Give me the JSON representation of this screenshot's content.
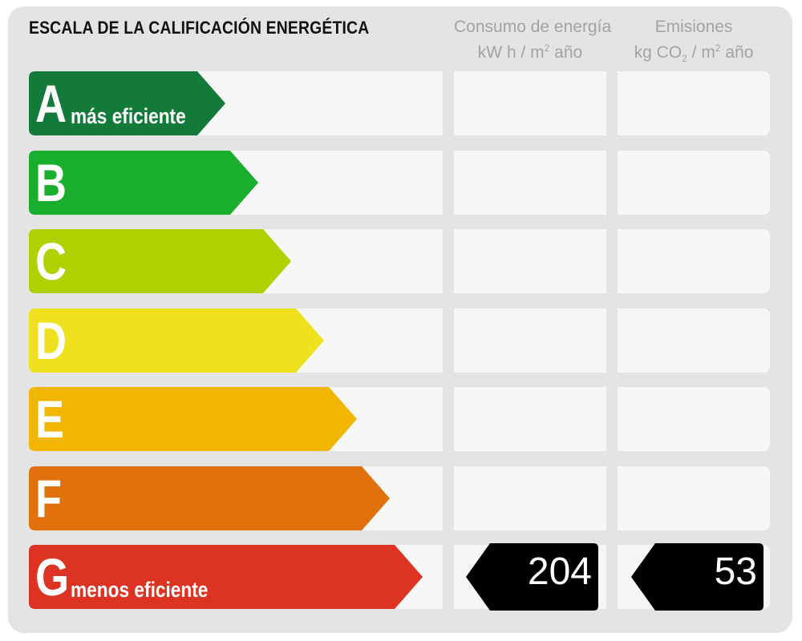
{
  "title": "ESCALA DE LA CALIFICACIÓN ENERGÉTICA",
  "columns": {
    "energy": {
      "line1": "Consumo de energía",
      "unit_a": "kW h / m",
      "unit_sup": "2",
      "unit_b": " año"
    },
    "emissions": {
      "line1": "Emisiones",
      "unit_a": "kg CO",
      "unit_sub": "2",
      "unit_b": " / m",
      "unit_sup": "2",
      "unit_c": " año"
    }
  },
  "chart_data": {
    "type": "table",
    "title": "ESCALA DE LA CALIFICACIÓN ENERGÉTICA",
    "classes": [
      {
        "letter": "A",
        "note": "más eficiente",
        "color": "#137a3a"
      },
      {
        "letter": "B",
        "note": "",
        "color": "#1aae2e"
      },
      {
        "letter": "C",
        "note": "",
        "color": "#aed100"
      },
      {
        "letter": "D",
        "note": "",
        "color": "#efe11d"
      },
      {
        "letter": "E",
        "note": "",
        "color": "#f1b700"
      },
      {
        "letter": "F",
        "note": "",
        "color": "#e0710c"
      },
      {
        "letter": "G",
        "note": "menos eficiente",
        "color": "#dc3322"
      }
    ],
    "rating": {
      "energy_class": "G",
      "energy_value": "204",
      "emissions_class": "G",
      "emissions_value": "53"
    }
  }
}
